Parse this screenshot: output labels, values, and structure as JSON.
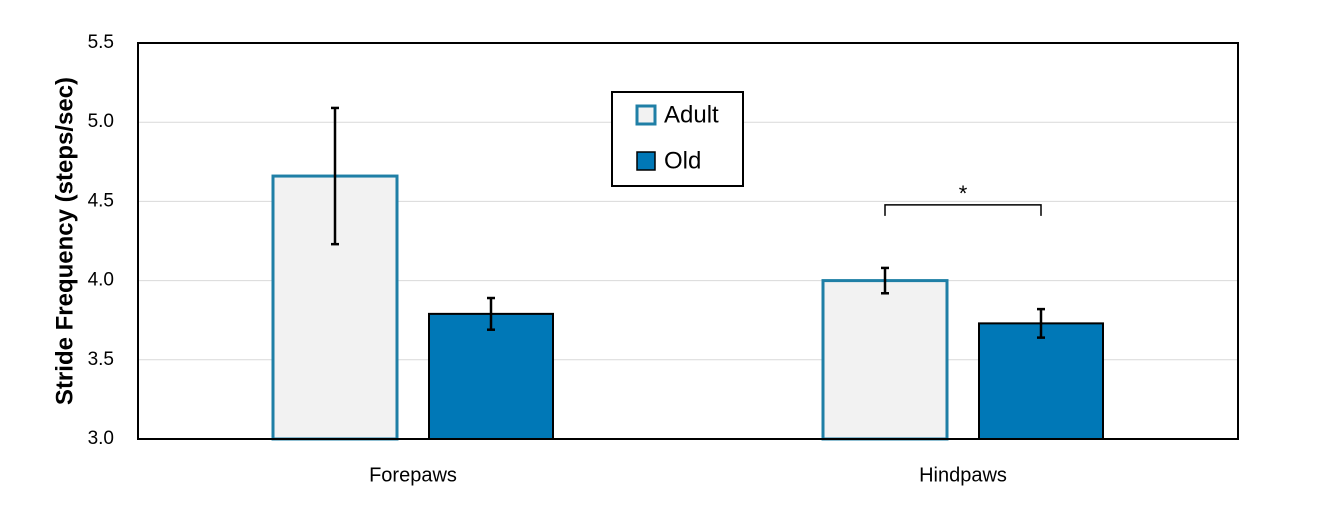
{
  "chart_data": {
    "type": "bar",
    "title": "",
    "xlabel": "",
    "ylabel": "Stride Frequency (steps/sec)",
    "ylim": [
      3.0,
      5.5
    ],
    "yticks": [
      "3.0",
      "3.5",
      "4.0",
      "4.5",
      "5.0",
      "5.5"
    ],
    "grid": true,
    "legend_position": "top-center",
    "categories": [
      "Forepaws",
      "Hindpaws"
    ],
    "series": [
      {
        "name": "Adult",
        "values": [
          4.66,
          4.0
        ],
        "errors": [
          0.43,
          0.08
        ],
        "fill": "#f2f2f2",
        "stroke": "#1f7fa6"
      },
      {
        "name": "Old",
        "values": [
          3.79,
          3.73
        ],
        "errors": [
          0.1,
          0.09
        ],
        "fill": "#0078b7",
        "stroke": "#000000"
      }
    ],
    "annotations": [
      {
        "category": "Hindpaws",
        "text": "*"
      }
    ]
  }
}
